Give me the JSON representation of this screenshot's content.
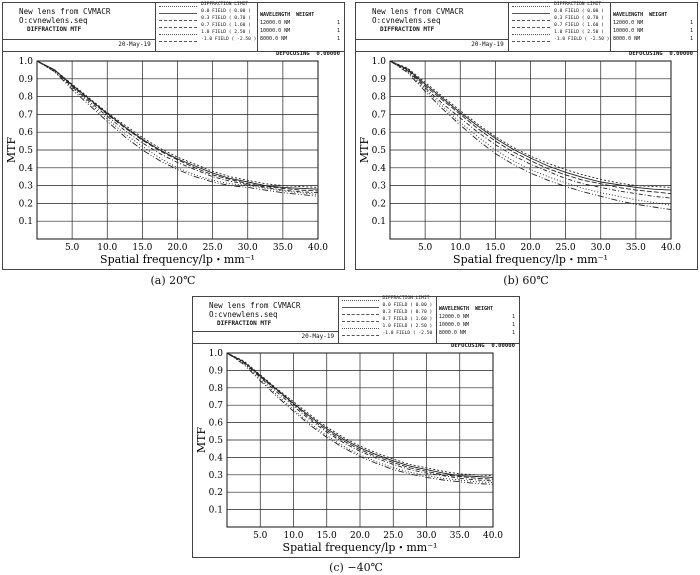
{
  "panels": [
    {
      "header": {
        "title": "New lens from CVMACR",
        "file": "O:cvnewlens.seq",
        "mode": "DIFFRACTION MTF",
        "date": "20-May-19",
        "defocusing": "DEFOCUSING  0.00000",
        "fields": [
          "DIFFRACTION LIMIT",
          "0.0 FIELD ( 0.00 )",
          "0.3 FIELD ( 0.70 )",
          "0.7 FIELD ( 1.60 )",
          "1.0 FIELD ( 2.50 )",
          "-1.0 FIELD ( -2.50 )"
        ],
        "wavelength_header": "WAVELENGTH  WEIGHT",
        "wavelengths": [
          {
            "wl": "12000.0 NM",
            "w": "1"
          },
          {
            "wl": "10000.0 NM",
            "w": "1"
          },
          {
            "wl": "8000.0 NM",
            "w": "1"
          }
        ]
      },
      "caption": "(a) 20℃"
    },
    {
      "header": {
        "title": "New lens from CVMACR",
        "file": "O:cvnewlens.seq",
        "mode": "DIFFRACTION MTF",
        "date": "20-May-19",
        "defocusing": "DEFOCUSING  0.00000",
        "fields": [
          "DIFFRACTION LIMIT",
          "0.0 FIELD ( 0.00 )",
          "0.3 FIELD ( 0.70 )",
          "0.7 FIELD ( 1.60 )",
          "1.0 FIELD ( 2.50 )",
          "-1.0 FIELD ( -2.50 )"
        ],
        "wavelength_header": "WAVELENGTH  WEIGHT",
        "wavelengths": [
          {
            "wl": "12000.0 NM",
            "w": "1"
          },
          {
            "wl": "10000.0 NM",
            "w": "1"
          },
          {
            "wl": "8000.0 NM",
            "w": "1"
          }
        ]
      },
      "caption": "(b) 60℃"
    },
    {
      "header": {
        "title": "New lens from CVMACR",
        "file": "O:cvnewlens.seq",
        "mode": "DIFFRACTION MTF",
        "date": "20-May-19",
        "defocusing": "DEFOCUSING  0.00000",
        "fields": [
          "DIFFRACTION LIMIT",
          "0.0 FIELD ( 0.00 )",
          "0.3 FIELD ( 0.70 )",
          "0.7 FIELD ( 1.60 )",
          "1.0 FIELD ( 2.50 )",
          "-1.0 FIELD ( -2.50 )"
        ],
        "wavelength_header": "WAVELENGTH  WEIGHT",
        "wavelengths": [
          {
            "wl": "12000.0 NM",
            "w": "1"
          },
          {
            "wl": "10000.0 NM",
            "w": "1"
          },
          {
            "wl": "8000.0 NM",
            "w": "1"
          }
        ]
      },
      "caption": "(c) −40℃"
    }
  ],
  "chart_data": [
    {
      "type": "line",
      "xlabel": "Spatial frequency/lp・mm⁻¹",
      "ylabel": "MTF",
      "xlim": [
        0,
        40
      ],
      "ylim": [
        0,
        1.0
      ],
      "xticks": [
        "5.0",
        "10.0",
        "15.0",
        "20.0",
        "25.0",
        "30.0",
        "35.0",
        "40.0"
      ],
      "yticks": [
        "0.1",
        "0.2",
        "0.3",
        "0.4",
        "0.5",
        "0.6",
        "0.7",
        "0.8",
        "0.9",
        "1.0"
      ],
      "grid": true,
      "x": [
        0,
        2.5,
        5,
        7.5,
        10,
        12.5,
        15,
        17.5,
        20,
        22.5,
        25,
        27.5,
        30,
        32.5,
        35,
        37.5,
        40
      ],
      "series": [
        {
          "values": [
            1.0,
            0.95,
            0.87,
            0.79,
            0.71,
            0.64,
            0.57,
            0.51,
            0.46,
            0.42,
            0.38,
            0.35,
            0.33,
            0.31,
            0.3,
            0.295,
            0.29
          ]
        },
        {
          "values": [
            1.0,
            0.95,
            0.865,
            0.785,
            0.705,
            0.63,
            0.56,
            0.5,
            0.45,
            0.41,
            0.37,
            0.34,
            0.32,
            0.3,
            0.29,
            0.285,
            0.28
          ]
        },
        {
          "values": [
            1.0,
            0.95,
            0.86,
            0.78,
            0.7,
            0.625,
            0.555,
            0.495,
            0.445,
            0.4,
            0.36,
            0.335,
            0.31,
            0.295,
            0.285,
            0.275,
            0.27
          ]
        },
        {
          "values": [
            1.0,
            0.945,
            0.855,
            0.77,
            0.69,
            0.61,
            0.54,
            0.48,
            0.43,
            0.39,
            0.35,
            0.325,
            0.305,
            0.29,
            0.275,
            0.265,
            0.26
          ]
        },
        {
          "values": [
            1.0,
            0.94,
            0.85,
            0.76,
            0.675,
            0.59,
            0.52,
            0.455,
            0.4,
            0.36,
            0.33,
            0.31,
            0.3,
            0.285,
            0.27,
            0.26,
            0.25
          ]
        },
        {
          "values": [
            1.0,
            0.94,
            0.84,
            0.75,
            0.66,
            0.575,
            0.5,
            0.44,
            0.39,
            0.35,
            0.32,
            0.3,
            0.29,
            0.275,
            0.26,
            0.25,
            0.24
          ]
        }
      ]
    },
    {
      "type": "line",
      "xlabel": "Spatial frequency/lp・mm⁻¹",
      "ylabel": "MTF",
      "xlim": [
        0,
        40
      ],
      "ylim": [
        0,
        1.0
      ],
      "xticks": [
        "5.0",
        "10.0",
        "15.0",
        "20.0",
        "25.0",
        "30.0",
        "35.0",
        "40.0"
      ],
      "yticks": [
        "0.1",
        "0.2",
        "0.3",
        "0.4",
        "0.5",
        "0.6",
        "0.7",
        "0.8",
        "0.9",
        "1.0"
      ],
      "grid": true,
      "x": [
        0,
        2.5,
        5,
        7.5,
        10,
        12.5,
        15,
        17.5,
        20,
        22.5,
        25,
        27.5,
        30,
        32.5,
        35,
        37.5,
        40
      ],
      "series": [
        {
          "values": [
            1.0,
            0.96,
            0.88,
            0.8,
            0.72,
            0.645,
            0.575,
            0.515,
            0.465,
            0.425,
            0.39,
            0.36,
            0.335,
            0.315,
            0.3,
            0.295,
            0.29
          ]
        },
        {
          "values": [
            1.0,
            0.955,
            0.87,
            0.79,
            0.71,
            0.635,
            0.565,
            0.505,
            0.455,
            0.41,
            0.375,
            0.345,
            0.32,
            0.305,
            0.29,
            0.28,
            0.275
          ]
        },
        {
          "values": [
            1.0,
            0.95,
            0.86,
            0.78,
            0.7,
            0.62,
            0.55,
            0.49,
            0.44,
            0.395,
            0.36,
            0.33,
            0.31,
            0.29,
            0.275,
            0.265,
            0.255
          ]
        },
        {
          "values": [
            1.0,
            0.945,
            0.85,
            0.76,
            0.68,
            0.6,
            0.53,
            0.47,
            0.42,
            0.38,
            0.34,
            0.31,
            0.29,
            0.27,
            0.255,
            0.24,
            0.23
          ]
        },
        {
          "values": [
            1.0,
            0.94,
            0.84,
            0.745,
            0.655,
            0.575,
            0.5,
            0.44,
            0.39,
            0.35,
            0.315,
            0.285,
            0.26,
            0.24,
            0.22,
            0.205,
            0.19
          ]
        },
        {
          "values": [
            1.0,
            0.935,
            0.83,
            0.73,
            0.64,
            0.555,
            0.48,
            0.42,
            0.37,
            0.33,
            0.295,
            0.265,
            0.24,
            0.215,
            0.195,
            0.18,
            0.165
          ]
        }
      ]
    },
    {
      "type": "line",
      "xlabel": "Spatial frequency/lp・mm⁻¹",
      "ylabel": "MTF",
      "xlim": [
        0,
        40
      ],
      "ylim": [
        0,
        1.0
      ],
      "xticks": [
        "5.0",
        "10.0",
        "15.0",
        "20.0",
        "25.0",
        "30.0",
        "35.0",
        "40.0"
      ],
      "yticks": [
        "0.1",
        "0.2",
        "0.3",
        "0.4",
        "0.5",
        "0.6",
        "0.7",
        "0.8",
        "0.9",
        "1.0"
      ],
      "grid": true,
      "x": [
        0,
        2.5,
        5,
        7.5,
        10,
        12.5,
        15,
        17.5,
        20,
        22.5,
        25,
        27.5,
        30,
        32.5,
        35,
        37.5,
        40
      ],
      "series": [
        {
          "values": [
            1.0,
            0.955,
            0.875,
            0.795,
            0.72,
            0.645,
            0.575,
            0.515,
            0.465,
            0.425,
            0.39,
            0.36,
            0.34,
            0.32,
            0.305,
            0.3,
            0.295
          ]
        },
        {
          "values": [
            1.0,
            0.95,
            0.87,
            0.79,
            0.71,
            0.635,
            0.565,
            0.505,
            0.455,
            0.415,
            0.38,
            0.35,
            0.33,
            0.31,
            0.295,
            0.29,
            0.285
          ]
        },
        {
          "values": [
            1.0,
            0.95,
            0.865,
            0.785,
            0.705,
            0.625,
            0.555,
            0.495,
            0.445,
            0.405,
            0.37,
            0.34,
            0.32,
            0.3,
            0.29,
            0.28,
            0.275
          ]
        },
        {
          "values": [
            1.0,
            0.945,
            0.86,
            0.775,
            0.695,
            0.615,
            0.545,
            0.485,
            0.435,
            0.395,
            0.36,
            0.33,
            0.31,
            0.295,
            0.28,
            0.27,
            0.265
          ]
        },
        {
          "values": [
            1.0,
            0.94,
            0.85,
            0.76,
            0.675,
            0.595,
            0.525,
            0.465,
            0.415,
            0.375,
            0.34,
            0.315,
            0.295,
            0.28,
            0.27,
            0.26,
            0.255
          ]
        },
        {
          "values": [
            1.0,
            0.935,
            0.84,
            0.75,
            0.665,
            0.585,
            0.515,
            0.455,
            0.405,
            0.365,
            0.33,
            0.305,
            0.285,
            0.27,
            0.26,
            0.25,
            0.245
          ]
        }
      ]
    }
  ]
}
